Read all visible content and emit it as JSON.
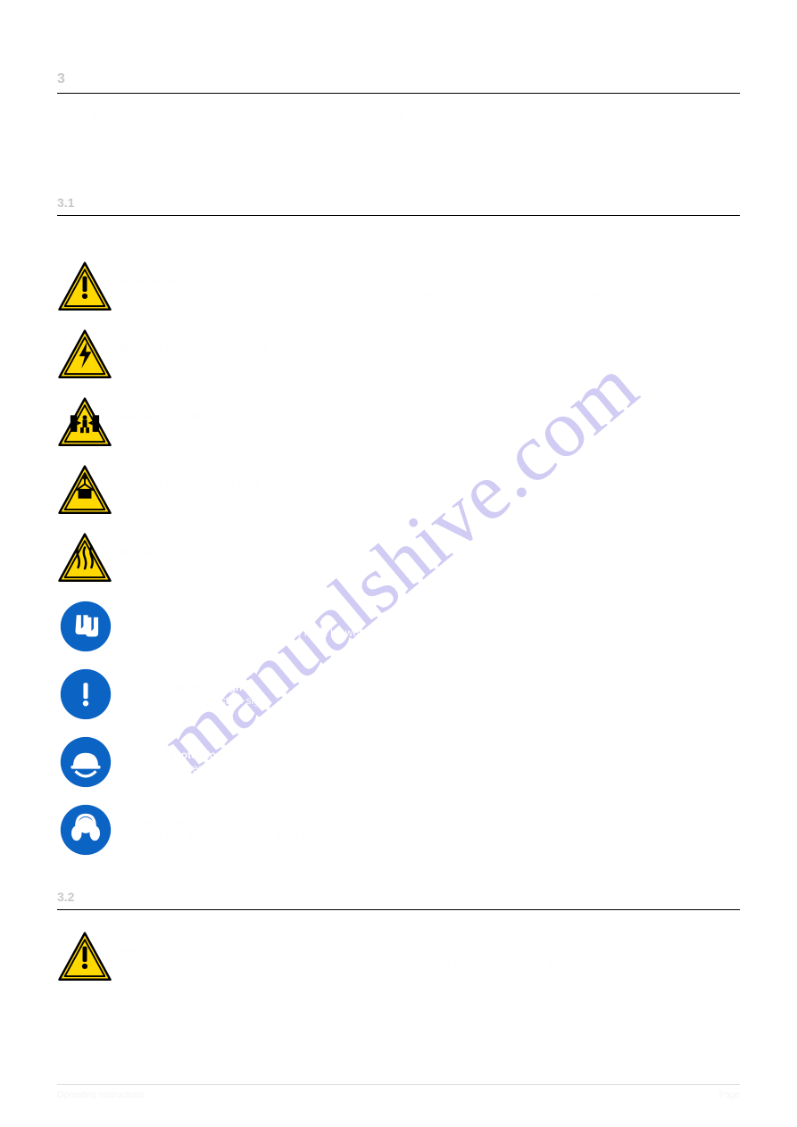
{
  "watermark": "manualshive.com",
  "section": {
    "number": "3",
    "title": "Safety"
  },
  "intro": "Before beginning any work, observe the safety information in this chapter.",
  "subsection_symbols": {
    "number": "3.1",
    "title": "Explanations of symbols",
    "lead": "The warning notices are symbolized by danger symbols and signal words."
  },
  "symbols": [
    {
      "name": "general-warning",
      "type": "triangle",
      "fill": "#ffd800",
      "stroke": "#000000",
      "glyph": "exclamation",
      "glyph_color": "#000000",
      "label": "General warning sign",
      "desc": "Warns of a potential danger. Failure to observe this safety information may result in personal injury and property damage."
    },
    {
      "name": "electrical-hazard",
      "type": "triangle",
      "fill": "#ffd800",
      "stroke": "#000000",
      "glyph": "bolt",
      "glyph_color": "#000000",
      "label": "Warning of electrical hazards",
      "desc": "Warns of electrical hazards."
    },
    {
      "name": "crushing-hazard",
      "type": "triangle",
      "fill": "#ffd800",
      "stroke": "#000000",
      "glyph": "crush",
      "glyph_color": "#000000",
      "label": "Warning of crushing hazard",
      "desc": "Warns of risk of crushing."
    },
    {
      "name": "suspended-load",
      "type": "triangle",
      "fill": "#ffd800",
      "stroke": "#000000",
      "glyph": "load",
      "glyph_color": "#000000",
      "label": "Warning of suspended load",
      "desc": "Warns of suspended loads."
    },
    {
      "name": "hot-surface",
      "type": "triangle",
      "fill": "#ffd800",
      "stroke": "#000000",
      "glyph": "heat",
      "glyph_color": "#000000",
      "label": "Warning of hot surface",
      "desc": "Warns of hot surfaces."
    },
    {
      "name": "wear-gloves",
      "type": "circle",
      "fill": "#0b63c4",
      "stroke": "#ffffff",
      "glyph": "gloves",
      "glyph_color": "#ffffff",
      "label": "Use hand protection",
      "desc": "Indicates that hand protection (gloves) must be worn."
    },
    {
      "name": "mandatory-action",
      "type": "circle",
      "fill": "#0b63c4",
      "stroke": "#ffffff",
      "glyph": "exclamation",
      "glyph_color": "#ffffff",
      "label": "General mandatory sign",
      "desc": "General mandatory action sign."
    },
    {
      "name": "wear-helmet",
      "type": "circle",
      "fill": "#0b63c4",
      "stroke": "#ffffff",
      "glyph": "helmet",
      "glyph_color": "#ffffff",
      "label": "Use head protection",
      "desc": "Indicates that head protection (helmet) must be worn."
    },
    {
      "name": "wear-ear-protection",
      "type": "circle",
      "fill": "#0b63c4",
      "stroke": "#ffffff",
      "glyph": "ears",
      "glyph_color": "#ffffff",
      "label": "Use ear protection",
      "desc": "Indicates that hearing protection must be worn."
    }
  ],
  "subsection_hazards": {
    "number": "3.2",
    "title": "Potential hazards"
  },
  "hazard": {
    "name": "general-warning",
    "type": "triangle",
    "fill": "#ffd800",
    "stroke": "#000000",
    "glyph": "exclamation",
    "glyph_color": "#000000",
    "signal": "WARNING",
    "text": "Failure to observe the safety instructions can result in serious injury or death and property damage."
  },
  "footer": {
    "left": "Operating Instructions",
    "right": "Page"
  },
  "colors": {
    "warning_yellow": "#ffd800",
    "mandatory_blue": "#0b63c4",
    "watermark": "rgba(120,110,220,0.35)",
    "rule": "#000000",
    "background": "#ffffff"
  }
}
